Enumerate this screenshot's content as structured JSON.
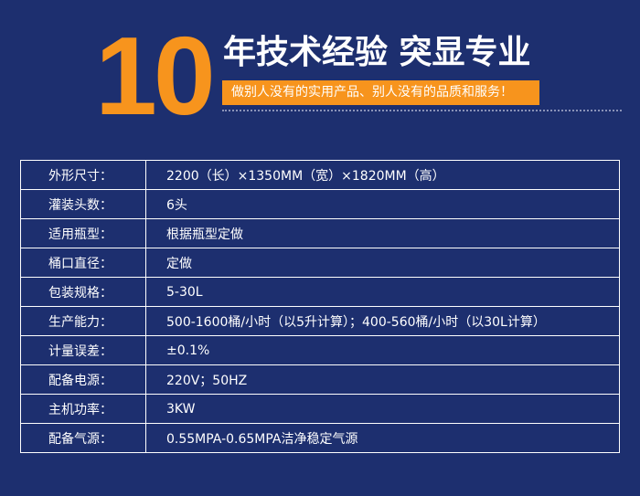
{
  "header": {
    "number": "10",
    "title": "年技术经验 突显专业",
    "slogan": "做别人没有的实用产品、别人没有的品质和服务！"
  },
  "table": {
    "rows": [
      [
        "外形尺寸：",
        "2200（长）×1350MM（宽）×1820MM（高）"
      ],
      [
        "灌装头数：",
        "6头"
      ],
      [
        "适用瓶型：",
        "根据瓶型定做"
      ],
      [
        "桶口直径：",
        "定做"
      ],
      [
        "包装规格：",
        "5-30L"
      ],
      [
        "生产能力：",
        "500-1600桶/小时（以5升计算）；400-560桶/小时（以30L计算）"
      ],
      [
        "计量误差：",
        "±0.1%"
      ],
      [
        "配备电源：",
        "220V；50HZ"
      ],
      [
        "主机功率：",
        "3KW"
      ],
      [
        "配备气源：",
        "0.55MPA-0.65MPA洁净稳定气源"
      ]
    ]
  }
}
